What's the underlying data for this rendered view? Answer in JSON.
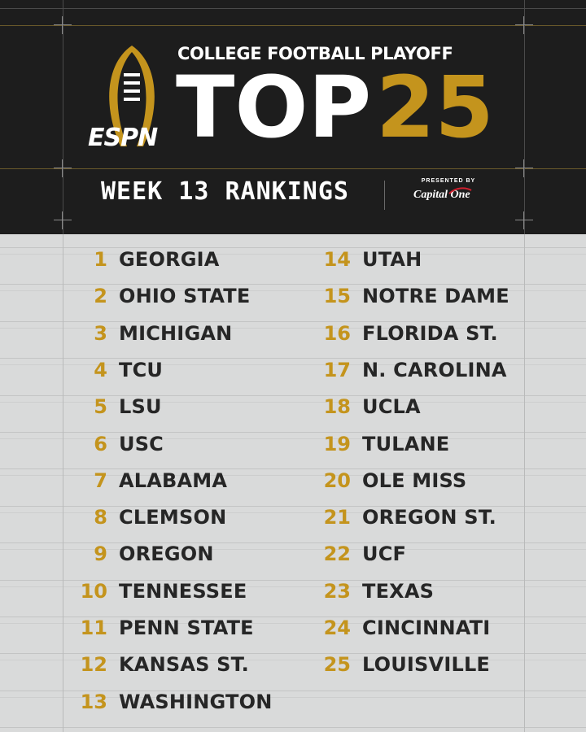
{
  "header": {
    "brand": "ESPN",
    "cfp_title": "COLLEGE FOOTBALL PLAYOFF",
    "top_word": "TOP",
    "top_number": "25",
    "week_title": "WEEK 13 RANKINGS",
    "presented_by": "PRESENTED BY",
    "sponsor": "Capital One",
    "logo_icon": "football-trophy-icon"
  },
  "colors": {
    "gold": "#c4941d",
    "header_bg": "#1d1d1d",
    "list_bg": "#d9dada",
    "team_text": "#262626"
  },
  "rankings_left": [
    {
      "rank": "1",
      "team": "GEORGIA"
    },
    {
      "rank": "2",
      "team": "OHIO STATE"
    },
    {
      "rank": "3",
      "team": "MICHIGAN"
    },
    {
      "rank": "4",
      "team": "TCU"
    },
    {
      "rank": "5",
      "team": "LSU"
    },
    {
      "rank": "6",
      "team": "USC"
    },
    {
      "rank": "7",
      "team": "ALABAMA"
    },
    {
      "rank": "8",
      "team": "CLEMSON"
    },
    {
      "rank": "9",
      "team": "OREGON"
    },
    {
      "rank": "10",
      "team": "TENNESSEE"
    },
    {
      "rank": "11",
      "team": "PENN STATE"
    },
    {
      "rank": "12",
      "team": "KANSAS ST."
    },
    {
      "rank": "13",
      "team": "WASHINGTON"
    }
  ],
  "rankings_right": [
    {
      "rank": "14",
      "team": "UTAH"
    },
    {
      "rank": "15",
      "team": "NOTRE DAME"
    },
    {
      "rank": "16",
      "team": "FLORIDA ST."
    },
    {
      "rank": "17",
      "team": "N. CAROLINA"
    },
    {
      "rank": "18",
      "team": "UCLA"
    },
    {
      "rank": "19",
      "team": "TULANE"
    },
    {
      "rank": "20",
      "team": "OLE MISS"
    },
    {
      "rank": "21",
      "team": "OREGON ST."
    },
    {
      "rank": "22",
      "team": "UCF"
    },
    {
      "rank": "23",
      "team": "TEXAS"
    },
    {
      "rank": "24",
      "team": "CINCINNATI"
    },
    {
      "rank": "25",
      "team": "LOUISVILLE"
    }
  ]
}
